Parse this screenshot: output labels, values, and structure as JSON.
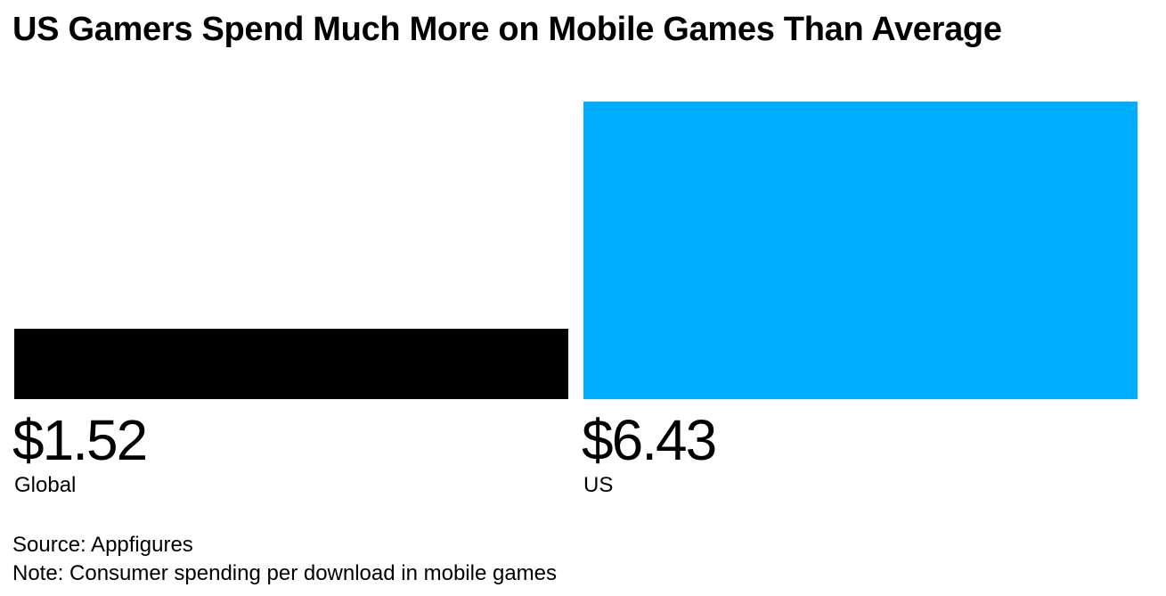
{
  "chart_data": {
    "type": "bar",
    "title": "US Gamers Spend Much More on Mobile Games Than Average",
    "categories": [
      "Global",
      "US"
    ],
    "values": [
      1.52,
      6.43
    ],
    "value_labels": [
      "$1.52",
      "$6.43"
    ],
    "colors": [
      "#000000",
      "#00AEFF"
    ],
    "ylim": [
      0,
      6.43
    ],
    "grid": false,
    "legend": "none"
  },
  "footer": {
    "source": "Source: Appfigures",
    "note": "Note: Consumer spending per download in mobile games"
  }
}
